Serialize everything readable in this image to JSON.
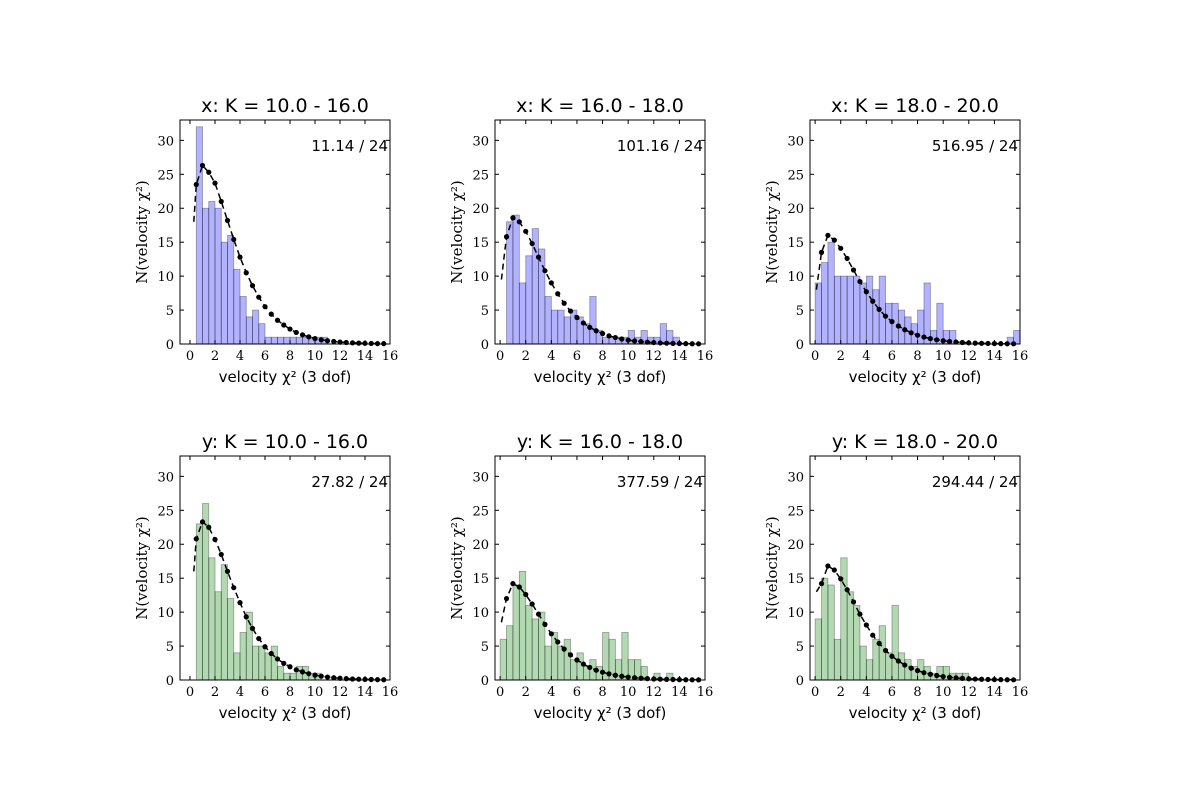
{
  "figure": {
    "background": "#ffffff"
  },
  "chart_data": [
    {
      "type": "bar",
      "title": "x: K = 10.0 - 16.0",
      "annotation": "11.14 / 24",
      "color": "#0000ff",
      "alpha": 0.3,
      "bin_width": 0.5,
      "bin_start": 0,
      "values": [
        0,
        32,
        20,
        21,
        20,
        15,
        16,
        11,
        7,
        4,
        5,
        3,
        1,
        1,
        1,
        1,
        1,
        1,
        1,
        1,
        1,
        1,
        0,
        0,
        0,
        0,
        0,
        0,
        0,
        0,
        0,
        0
      ],
      "model_points": [
        [
          0.5,
          23.5
        ],
        [
          1.0,
          26.3
        ],
        [
          1.5,
          25.3
        ],
        [
          2.0,
          23.7
        ],
        [
          2.5,
          21.0
        ],
        [
          3.0,
          18.2
        ],
        [
          3.5,
          15.4
        ],
        [
          4.0,
          12.8
        ],
        [
          4.5,
          10.5
        ],
        [
          5.0,
          8.6
        ],
        [
          5.5,
          6.9
        ],
        [
          6.0,
          5.5
        ],
        [
          6.5,
          4.4
        ],
        [
          7.0,
          3.5
        ],
        [
          7.5,
          2.8
        ],
        [
          8.0,
          2.2
        ],
        [
          8.5,
          1.7
        ],
        [
          9.0,
          1.35
        ],
        [
          9.5,
          1.05
        ],
        [
          10.0,
          0.8
        ],
        [
          10.5,
          0.62
        ],
        [
          11.0,
          0.48
        ],
        [
          11.5,
          0.37
        ],
        [
          12.0,
          0.28
        ],
        [
          12.5,
          0.22
        ],
        [
          13.0,
          0.17
        ],
        [
          13.5,
          0.13
        ],
        [
          14.0,
          0.1
        ],
        [
          14.5,
          0.08
        ],
        [
          15.0,
          0.06
        ],
        [
          15.5,
          0.05
        ]
      ],
      "model_curve_start": [
        0.3,
        18.0
      ],
      "xlabel": "velocity χ² (3 dof)",
      "ylabel": "N(velocity χ²)",
      "xlim": [
        -0.8,
        16
      ],
      "ylim": [
        0,
        33
      ],
      "xticks": [
        0,
        2,
        4,
        6,
        8,
        10,
        12,
        14,
        16
      ],
      "yticks": [
        0,
        5,
        10,
        15,
        20,
        25,
        30
      ]
    },
    {
      "type": "bar",
      "title": "x: K = 16.0 - 18.0",
      "annotation": "101.16 / 24",
      "color": "#0000ff",
      "alpha": 0.3,
      "bin_width": 0.5,
      "bin_start": 0,
      "values": [
        0,
        18,
        19,
        9,
        13,
        17,
        14,
        7,
        5,
        5,
        4,
        5,
        4,
        3,
        7,
        2,
        1,
        1,
        1,
        1,
        2,
        1,
        2,
        1,
        1,
        3,
        2,
        1,
        0,
        0,
        0,
        0
      ],
      "model_points": [
        [
          0.5,
          15.8
        ],
        [
          1.0,
          18.6
        ],
        [
          1.5,
          18.0
        ],
        [
          2.0,
          16.6
        ],
        [
          2.5,
          14.8
        ],
        [
          3.0,
          12.8
        ],
        [
          3.5,
          10.8
        ],
        [
          4.0,
          9.0
        ],
        [
          4.5,
          7.4
        ],
        [
          5.0,
          6.0
        ],
        [
          5.5,
          4.85
        ],
        [
          6.0,
          3.9
        ],
        [
          6.5,
          3.1
        ],
        [
          7.0,
          2.45
        ],
        [
          7.5,
          1.95
        ],
        [
          8.0,
          1.55
        ],
        [
          8.5,
          1.2
        ],
        [
          9.0,
          0.95
        ],
        [
          9.5,
          0.74
        ],
        [
          10.0,
          0.58
        ],
        [
          10.5,
          0.45
        ],
        [
          11.0,
          0.35
        ],
        [
          11.5,
          0.27
        ],
        [
          12.0,
          0.21
        ],
        [
          12.5,
          0.16
        ],
        [
          13.0,
          0.12
        ],
        [
          13.5,
          0.09
        ],
        [
          14.0,
          0.07
        ],
        [
          14.5,
          0.05
        ],
        [
          15.0,
          0.04
        ],
        [
          15.5,
          0.03
        ]
      ],
      "model_curve_start": [
        0.1,
        9.5
      ],
      "xlabel": "velocity χ² (3 dof)",
      "ylabel": "N(velocity χ²)",
      "xlim": [
        -0.4,
        16
      ],
      "ylim": [
        0,
        33
      ],
      "xticks": [
        0,
        2,
        4,
        6,
        8,
        10,
        12,
        14,
        16
      ],
      "yticks": [
        0,
        5,
        10,
        15,
        20,
        25,
        30
      ]
    },
    {
      "type": "bar",
      "title": "x: K = 18.0 - 20.0",
      "annotation": "516.95 / 24",
      "color": "#0000ff",
      "alpha": 0.3,
      "bin_width": 0.5,
      "bin_start": 0,
      "values": [
        9,
        12,
        15,
        10,
        10,
        10,
        10,
        9,
        10,
        8,
        10,
        6,
        6,
        5,
        4,
        3,
        5,
        9,
        2,
        6,
        2,
        2,
        0,
        0,
        0,
        0,
        0,
        0,
        0,
        0,
        1,
        2
      ],
      "model_points": [
        [
          0.5,
          13.5
        ],
        [
          1.0,
          16.0
        ],
        [
          1.5,
          15.3
        ],
        [
          2.0,
          14.1
        ],
        [
          2.5,
          12.6
        ],
        [
          3.0,
          10.9
        ],
        [
          3.5,
          9.2
        ],
        [
          4.0,
          7.7
        ],
        [
          4.5,
          6.3
        ],
        [
          5.0,
          5.1
        ],
        [
          5.5,
          4.1
        ],
        [
          6.0,
          3.3
        ],
        [
          6.5,
          2.65
        ],
        [
          7.0,
          2.1
        ],
        [
          7.5,
          1.65
        ],
        [
          8.0,
          1.3
        ],
        [
          8.5,
          1.02
        ],
        [
          9.0,
          0.8
        ],
        [
          9.5,
          0.62
        ],
        [
          10.0,
          0.48
        ],
        [
          10.5,
          0.37
        ],
        [
          11.0,
          0.29
        ],
        [
          11.5,
          0.22
        ],
        [
          12.0,
          0.17
        ],
        [
          12.5,
          0.13
        ],
        [
          13.0,
          0.1
        ],
        [
          13.5,
          0.08
        ],
        [
          14.0,
          0.06
        ],
        [
          14.5,
          0.05
        ],
        [
          15.0,
          0.04
        ],
        [
          15.5,
          0.03
        ]
      ],
      "model_curve_start": [
        0.1,
        8.0
      ],
      "xlabel": "velocity χ² (3 dof)",
      "ylabel": "N(velocity χ²)",
      "xlim": [
        -0.4,
        16
      ],
      "ylim": [
        0,
        33
      ],
      "xticks": [
        0,
        2,
        4,
        6,
        8,
        10,
        12,
        14,
        16
      ],
      "yticks": [
        0,
        5,
        10,
        15,
        20,
        25,
        30
      ]
    },
    {
      "type": "bar",
      "title": "y: K = 10.0 - 16.0",
      "annotation": "27.82 / 24",
      "color": "#008000",
      "alpha": 0.3,
      "bin_width": 0.5,
      "bin_start": 0,
      "values": [
        0,
        23,
        26,
        18,
        13,
        17,
        12,
        4,
        7,
        10,
        5,
        5,
        4,
        5,
        2,
        1,
        1,
        2,
        2,
        1,
        1,
        0,
        0,
        0,
        0,
        0,
        0,
        0,
        0,
        0,
        0,
        0
      ],
      "model_points": [
        [
          0.5,
          20.8
        ],
        [
          1.0,
          23.3
        ],
        [
          1.5,
          22.5
        ],
        [
          2.0,
          20.7
        ],
        [
          2.5,
          18.5
        ],
        [
          3.0,
          16.0
        ],
        [
          3.5,
          13.6
        ],
        [
          4.0,
          11.4
        ],
        [
          4.5,
          9.3
        ],
        [
          5.0,
          7.6
        ],
        [
          5.5,
          6.1
        ],
        [
          6.0,
          4.9
        ],
        [
          6.5,
          3.9
        ],
        [
          7.0,
          3.1
        ],
        [
          7.5,
          2.45
        ],
        [
          8.0,
          1.95
        ],
        [
          8.5,
          1.5
        ],
        [
          9.0,
          1.2
        ],
        [
          9.5,
          0.93
        ],
        [
          10.0,
          0.72
        ],
        [
          10.5,
          0.56
        ],
        [
          11.0,
          0.43
        ],
        [
          11.5,
          0.33
        ],
        [
          12.0,
          0.26
        ],
        [
          12.5,
          0.2
        ],
        [
          13.0,
          0.15
        ],
        [
          13.5,
          0.12
        ],
        [
          14.0,
          0.09
        ],
        [
          14.5,
          0.07
        ],
        [
          15.0,
          0.05
        ],
        [
          15.5,
          0.04
        ]
      ],
      "model_curve_start": [
        0.3,
        16.0
      ],
      "xlabel": "velocity χ² (3 dof)",
      "ylabel": "N(velocity χ²)",
      "xlim": [
        -0.8,
        16
      ],
      "ylim": [
        0,
        33
      ],
      "xticks": [
        0,
        2,
        4,
        6,
        8,
        10,
        12,
        14,
        16
      ],
      "yticks": [
        0,
        5,
        10,
        15,
        20,
        25,
        30
      ]
    },
    {
      "type": "bar",
      "title": "y: K = 16.0 - 18.0",
      "annotation": "377.59 / 24",
      "color": "#008000",
      "alpha": 0.3,
      "bin_width": 0.5,
      "bin_start": 0,
      "values": [
        6,
        8,
        14,
        16,
        11,
        9,
        10,
        5,
        7,
        5,
        6,
        3,
        4,
        2,
        3,
        2,
        7,
        6,
        3,
        7,
        3,
        3,
        2,
        0,
        1,
        0,
        1,
        0,
        0,
        0,
        0,
        0
      ],
      "model_points": [
        [
          0.5,
          12.0
        ],
        [
          1.0,
          14.2
        ],
        [
          1.5,
          13.7
        ],
        [
          2.0,
          12.6
        ],
        [
          2.5,
          11.2
        ],
        [
          3.0,
          9.7
        ],
        [
          3.5,
          8.2
        ],
        [
          4.0,
          6.8
        ],
        [
          4.5,
          5.6
        ],
        [
          5.0,
          4.55
        ],
        [
          5.5,
          3.7
        ],
        [
          6.0,
          2.95
        ],
        [
          6.5,
          2.35
        ],
        [
          7.0,
          1.85
        ],
        [
          7.5,
          1.45
        ],
        [
          8.0,
          1.15
        ],
        [
          8.5,
          0.9
        ],
        [
          9.0,
          0.7
        ],
        [
          9.5,
          0.55
        ],
        [
          10.0,
          0.43
        ],
        [
          10.5,
          0.33
        ],
        [
          11.0,
          0.26
        ],
        [
          11.5,
          0.2
        ],
        [
          12.0,
          0.15
        ],
        [
          12.5,
          0.12
        ],
        [
          13.0,
          0.09
        ],
        [
          13.5,
          0.07
        ],
        [
          14.0,
          0.05
        ],
        [
          14.5,
          0.04
        ],
        [
          15.0,
          0.03
        ],
        [
          15.5,
          0.02
        ]
      ],
      "model_curve_start": [
        0.1,
        8.5
      ],
      "xlabel": "velocity χ² (3 dof)",
      "ylabel": "N(velocity χ²)",
      "xlim": [
        -0.4,
        16
      ],
      "ylim": [
        0,
        33
      ],
      "xticks": [
        0,
        2,
        4,
        6,
        8,
        10,
        12,
        14,
        16
      ],
      "yticks": [
        0,
        5,
        10,
        15,
        20,
        25,
        30
      ]
    },
    {
      "type": "bar",
      "title": "y: K = 18.0 - 20.0",
      "annotation": "294.44 / 24",
      "color": "#008000",
      "alpha": 0.3,
      "bin_width": 0.5,
      "bin_start": 0,
      "values": [
        9,
        15,
        14,
        6,
        18,
        13,
        11,
        5,
        3,
        6,
        8,
        4,
        11,
        4,
        3,
        2,
        3,
        2,
        1,
        2,
        2,
        1,
        1,
        1,
        0,
        0,
        0,
        0,
        0,
        0,
        0,
        0
      ],
      "model_points": [
        [
          0.5,
          14.2
        ],
        [
          1.0,
          16.8
        ],
        [
          1.5,
          16.2
        ],
        [
          2.0,
          14.9
        ],
        [
          2.5,
          13.3
        ],
        [
          3.0,
          11.5
        ],
        [
          3.5,
          9.7
        ],
        [
          4.0,
          8.1
        ],
        [
          4.5,
          6.6
        ],
        [
          5.0,
          5.4
        ],
        [
          5.5,
          4.35
        ],
        [
          6.0,
          3.5
        ],
        [
          6.5,
          2.8
        ],
        [
          7.0,
          2.2
        ],
        [
          7.5,
          1.75
        ],
        [
          8.0,
          1.38
        ],
        [
          8.5,
          1.08
        ],
        [
          9.0,
          0.85
        ],
        [
          9.5,
          0.66
        ],
        [
          10.0,
          0.51
        ],
        [
          10.5,
          0.4
        ],
        [
          11.0,
          0.31
        ],
        [
          11.5,
          0.24
        ],
        [
          12.0,
          0.18
        ],
        [
          12.5,
          0.14
        ],
        [
          13.0,
          0.11
        ],
        [
          13.5,
          0.08
        ],
        [
          14.0,
          0.06
        ],
        [
          14.5,
          0.05
        ],
        [
          15.0,
          0.04
        ],
        [
          15.5,
          0.03
        ]
      ],
      "model_curve_start": [
        0.1,
        13.0
      ],
      "xlabel": "velocity χ² (3 dof)",
      "ylabel": "N(velocity χ²)",
      "xlim": [
        -0.4,
        16
      ],
      "ylim": [
        0,
        33
      ],
      "xticks": [
        0,
        2,
        4,
        6,
        8,
        10,
        12,
        14,
        16
      ],
      "yticks": [
        0,
        5,
        10,
        15,
        20,
        25,
        30
      ]
    }
  ]
}
